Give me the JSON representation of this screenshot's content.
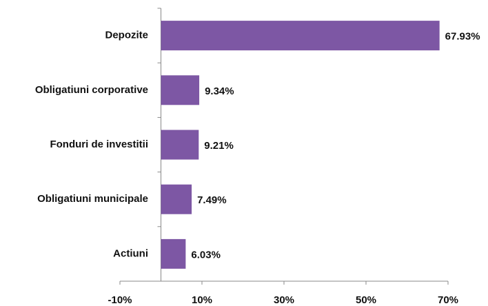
{
  "chart_data": {
    "type": "barh",
    "categories": [
      "Depozite",
      "Obligatiuni corporative",
      "Fonduri de investitii",
      "Obligatiuni municipale",
      "Actiuni"
    ],
    "values": [
      67.93,
      9.34,
      9.21,
      7.49,
      6.03
    ],
    "value_labels": [
      "67.93%",
      "9.34%",
      "9.21%",
      "7.49%",
      "6.03%"
    ],
    "color": "#7d57a4",
    "xlim": [
      -10,
      70
    ],
    "xticks": [
      {
        "value": -10,
        "label": "-10%"
      },
      {
        "value": 10,
        "label": "10%"
      },
      {
        "value": 30,
        "label": "30%"
      },
      {
        "value": 50,
        "label": "50%"
      },
      {
        "value": 70,
        "label": "70%"
      }
    ],
    "grid": false
  }
}
